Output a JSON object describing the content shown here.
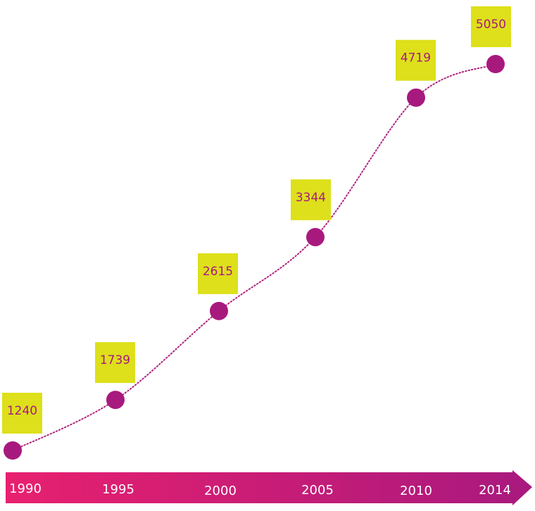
{
  "chart_data": {
    "type": "line",
    "title": "",
    "xlabel": "",
    "ylabel": "",
    "categories": [
      "1990",
      "1995",
      "2000",
      "2005",
      "2010",
      "2014"
    ],
    "series": [
      {
        "name": "values",
        "values": [
          1240,
          1739,
          2615,
          3344,
          4719,
          5050
        ]
      }
    ],
    "ylim": [
      1000,
      5200
    ],
    "grid": false,
    "legend": "none"
  },
  "colors": {
    "marker": "#a8197e",
    "line": "#b0237f",
    "label_bg": "#dde01a",
    "label_text": "#a8197e",
    "axis_start": "#e8206f",
    "axis_end": "#a8197e",
    "tick_text": "#ffffff"
  }
}
